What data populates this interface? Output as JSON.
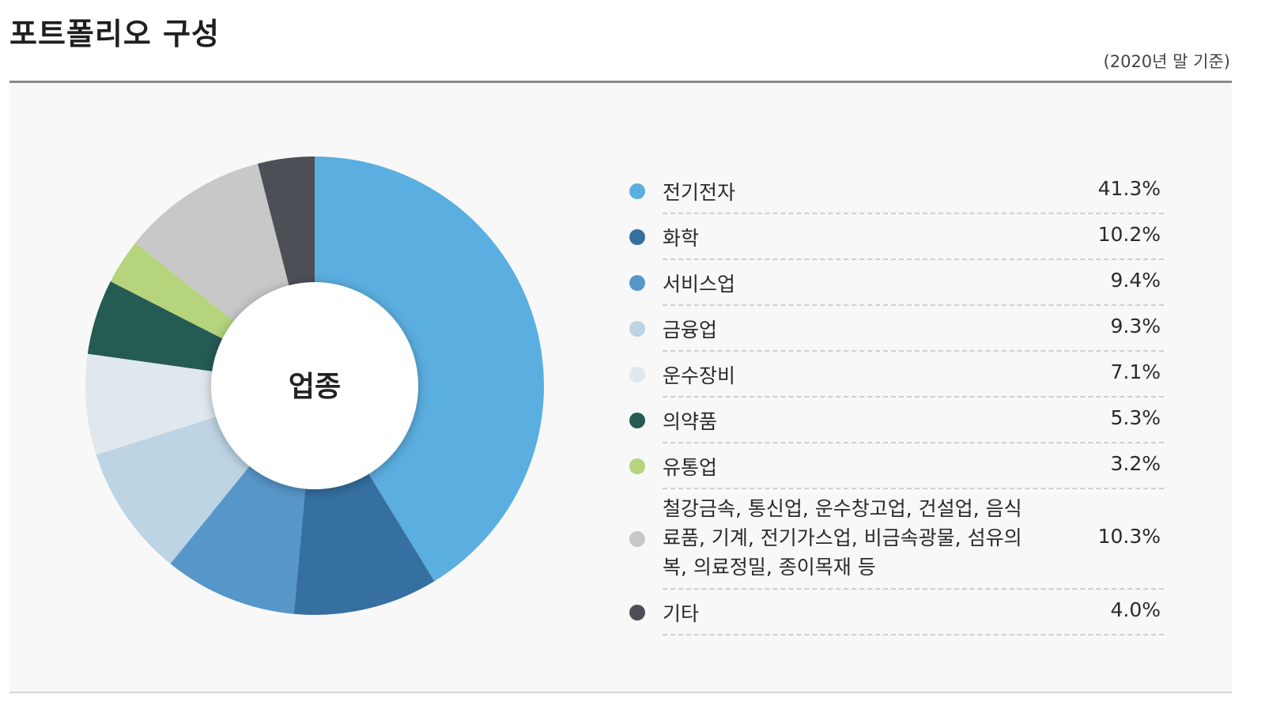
{
  "header": {
    "title": "포트폴리오 구성",
    "basis_note": "(2020년 말 기준)"
  },
  "chart_data": {
    "type": "pie",
    "variant": "donut",
    "center_label": "업종",
    "legend_placement": "right",
    "slices": [
      {
        "label": "전기전자",
        "value_text": "41.3%",
        "value": 41.3,
        "color": "#5baee0"
      },
      {
        "label": "화학",
        "value_text": "10.2%",
        "value": 10.2,
        "color": "#3570a0"
      },
      {
        "label": "서비스업",
        "value_text": "9.4%",
        "value": 9.4,
        "color": "#5796c8"
      },
      {
        "label": "금융업",
        "value_text": "9.3%",
        "value": 9.3,
        "color": "#bdd4e4"
      },
      {
        "label": "운수장비",
        "value_text": "7.1%",
        "value": 7.1,
        "color": "#e0e8ee"
      },
      {
        "label": "의약품",
        "value_text": "5.3%",
        "value": 5.3,
        "color": "#245b53"
      },
      {
        "label": "유통업",
        "value_text": "3.2%",
        "value": 3.2,
        "color": "#b5d47c"
      },
      {
        "label": "철강금속, 통신업, 운수창고업, 건설업, 음식료품, 기계, 전기가스업, 비금속광물, 섬유의복, 의료정밀, 종이목재 등",
        "value_text": "10.3%",
        "value": 10.3,
        "color": "#c8c8c8"
      },
      {
        "label": "기타",
        "value_text": "4.0%",
        "value": 4.0,
        "color": "#4c5056"
      }
    ]
  }
}
